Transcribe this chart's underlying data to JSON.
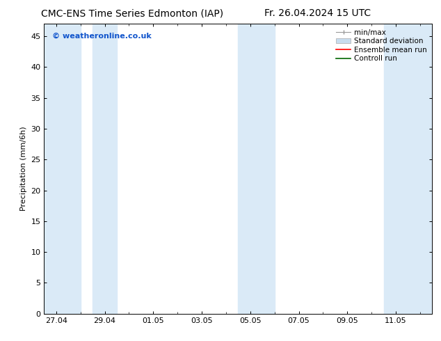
{
  "title_left": "CMC-ENS Time Series Edmonton (IAP)",
  "title_right": "Fr. 26.04.2024 15 UTC",
  "ylabel": "Precipitation (mm/6h)",
  "watermark": "© weatheronline.co.uk",
  "x_tick_labels": [
    "27.04",
    "29.04",
    "01.05",
    "03.05",
    "05.05",
    "07.05",
    "09.05",
    "11.05"
  ],
  "x_tick_positions": [
    0,
    2,
    4,
    6,
    8,
    10,
    12,
    14
  ],
  "ylim": [
    0,
    47
  ],
  "yticks": [
    0,
    5,
    10,
    15,
    20,
    25,
    30,
    35,
    40,
    45
  ],
  "xlim": [
    -0.5,
    15.5
  ],
  "shaded_bands": [
    {
      "x_start": -0.5,
      "x_end": 1.0,
      "color": "#daeaf7"
    },
    {
      "x_start": 1.5,
      "x_end": 2.5,
      "color": "#daeaf7"
    },
    {
      "x_start": 7.5,
      "x_end": 9.0,
      "color": "#daeaf7"
    },
    {
      "x_start": 13.5,
      "x_end": 15.5,
      "color": "#daeaf7"
    }
  ],
  "legend_labels": [
    "min/max",
    "Standard deviation",
    "Ensemble mean run",
    "Controll run"
  ],
  "legend_colors_line": [
    "#aaaaaa",
    "#c0d8ee",
    "#ff0000",
    "#008000"
  ],
  "background_color": "#ffffff",
  "font_size_title": 10,
  "font_size_axis": 8,
  "font_size_watermark": 8,
  "font_size_legend": 7.5
}
